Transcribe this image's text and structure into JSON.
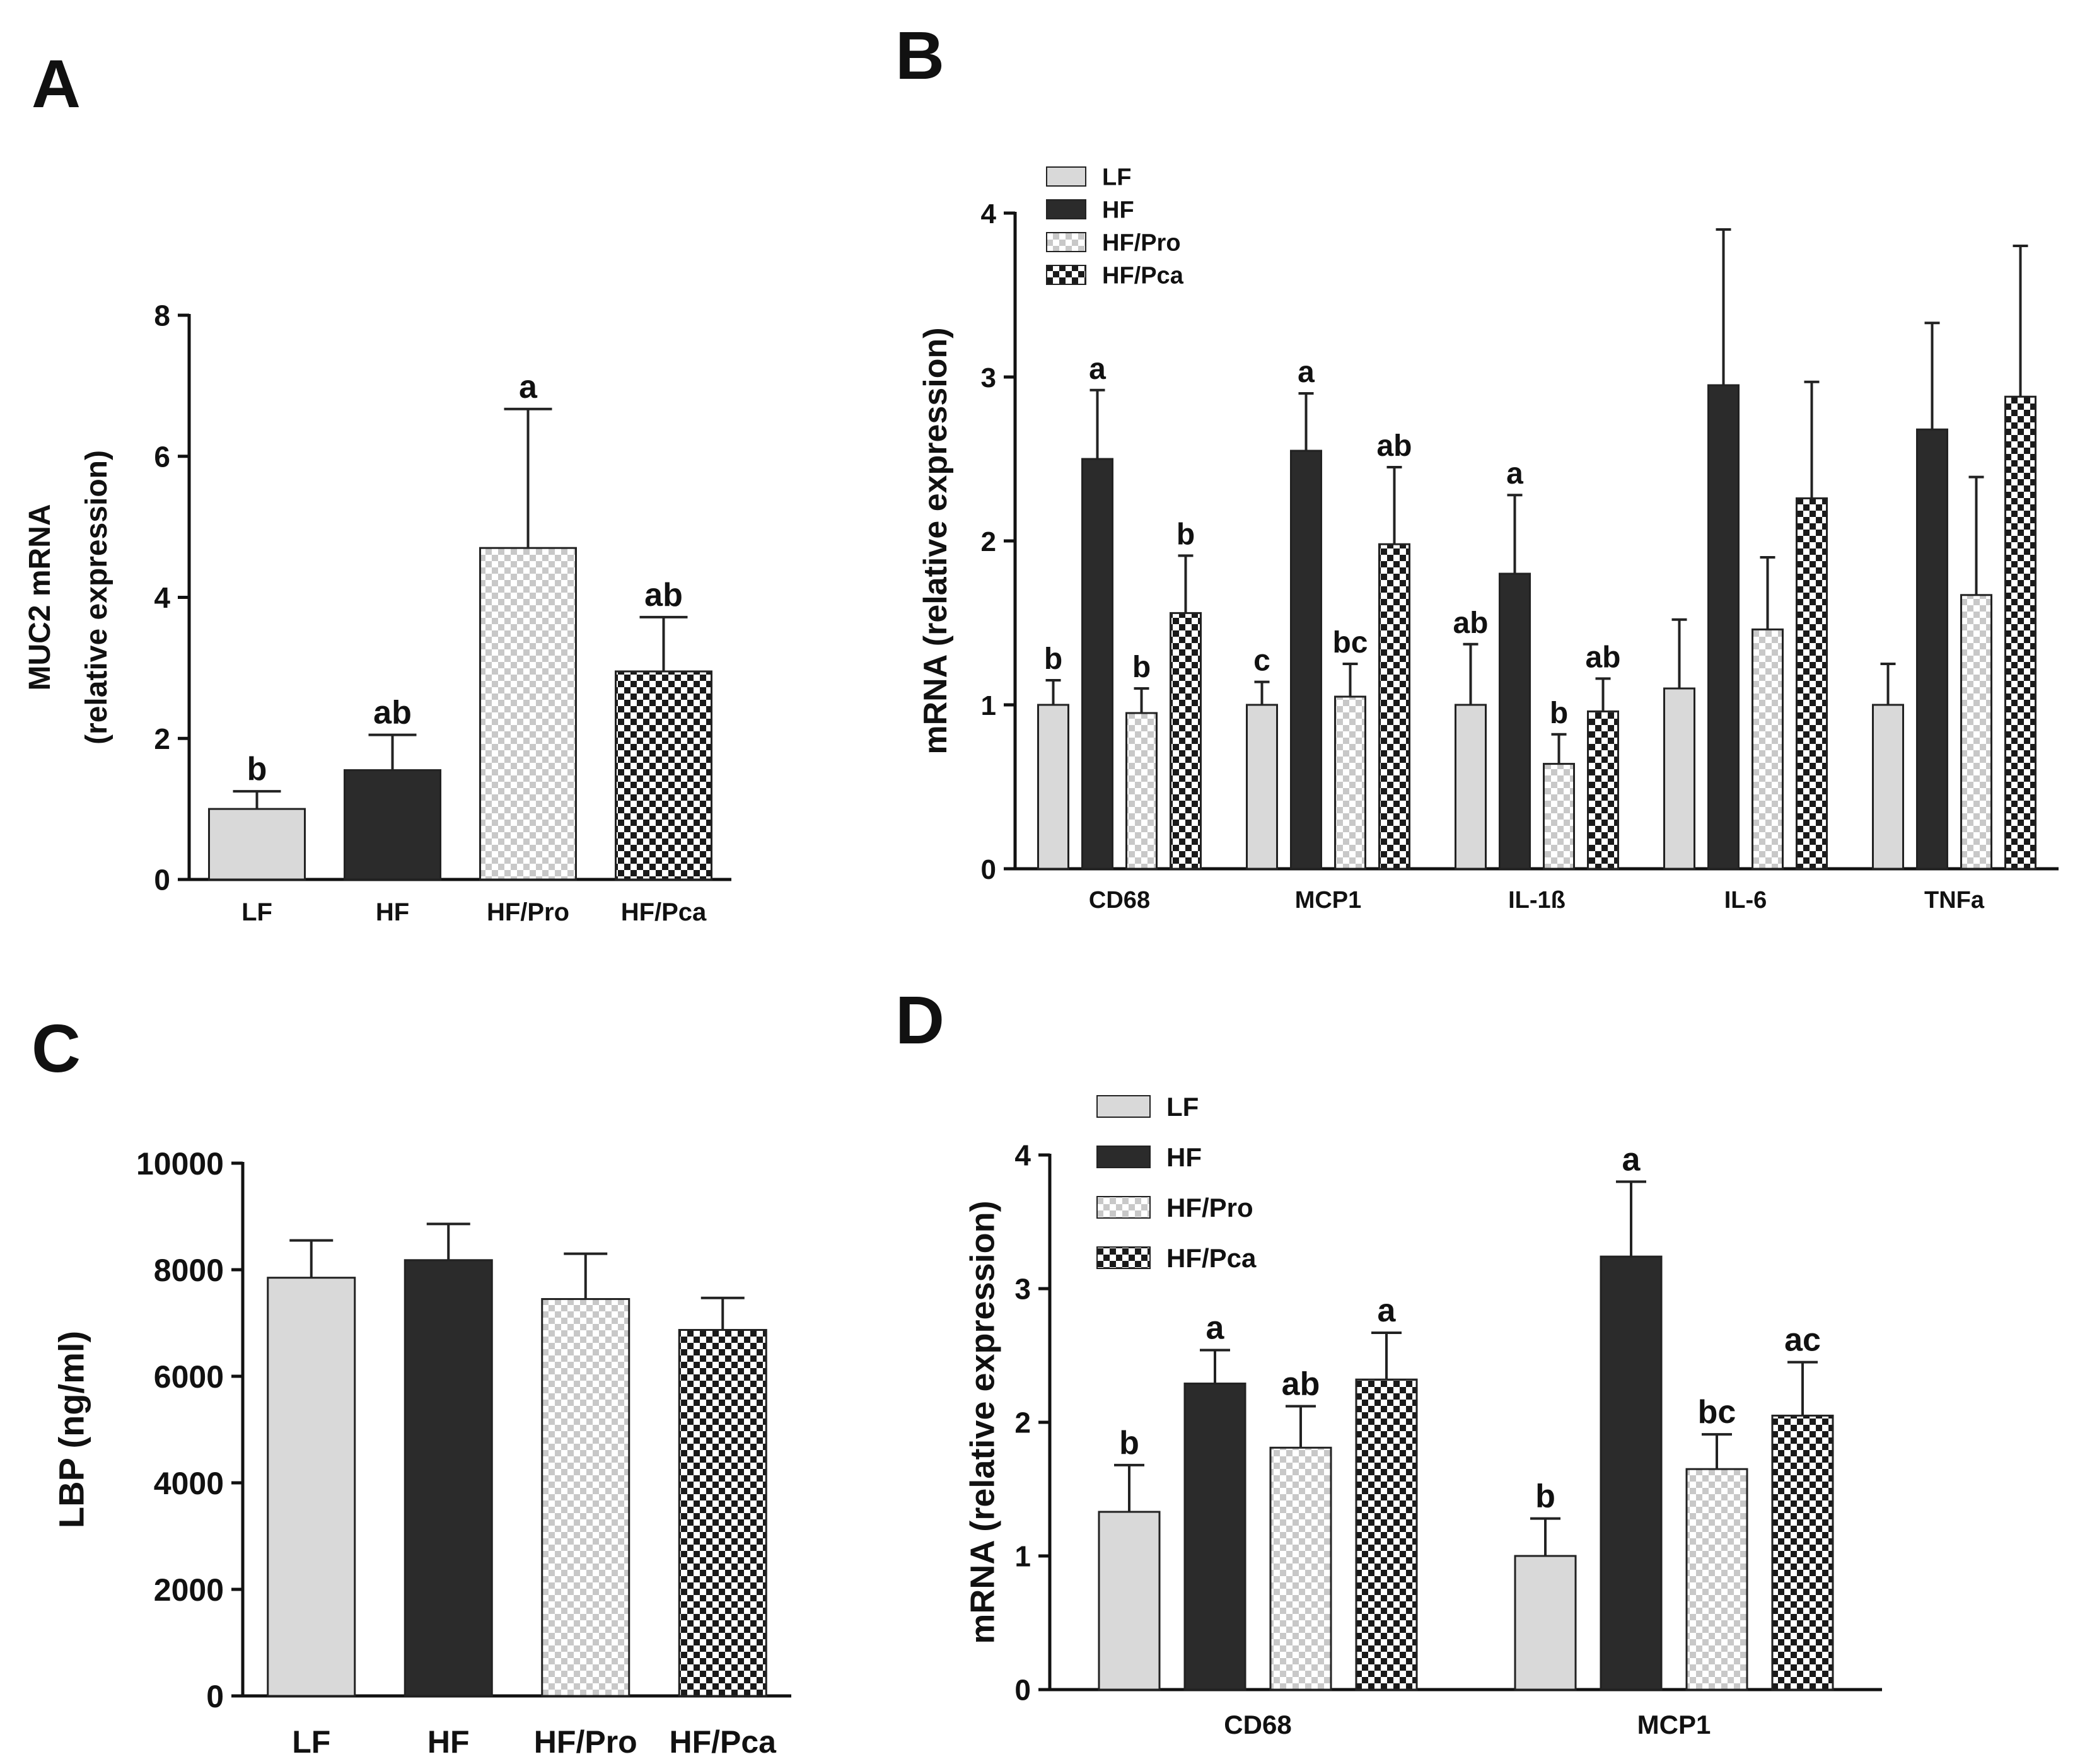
{
  "colors": {
    "light": "#d9d9d9",
    "dark": "#2b2b2b",
    "check_light_a": "#ffffff",
    "check_light_b": "#c8c8c8",
    "check_dark_a": "#ffffff",
    "check_dark_b": "#1a1a1a",
    "axis": "#111111",
    "bar_stroke": "#222222"
  },
  "groups": [
    "LF",
    "HF",
    "HF/Pro",
    "HF/Pca"
  ],
  "chart_data": [
    {
      "panel": "A",
      "type": "bar",
      "title": "",
      "xlabel": "",
      "ylabel_lines": [
        "MUC2 mRNA",
        "(relative expression)"
      ],
      "ylim": [
        0,
        8
      ],
      "yticks": [
        0,
        2,
        4,
        6,
        8
      ],
      "categories": [
        "LF",
        "HF",
        "HF/Pro",
        "HF/Pca"
      ],
      "values": [
        1.0,
        1.55,
        4.7,
        2.95
      ],
      "errors": [
        0.25,
        0.5,
        1.97,
        0.77
      ],
      "letters": [
        "b",
        "ab",
        "a",
        "ab"
      ],
      "legend": false
    },
    {
      "panel": "B",
      "type": "bar",
      "title": "",
      "xlabel": "",
      "ylabel_lines": [
        "mRNA (relative expression)"
      ],
      "ylim": [
        0,
        4
      ],
      "yticks": [
        0,
        1,
        2,
        3,
        4
      ],
      "categories": [
        "CD68",
        "MCP1",
        "IL-1ß",
        "IL-6",
        "TNFa"
      ],
      "series": [
        {
          "name": "LF",
          "values": [
            1.0,
            1.0,
            1.0,
            1.1,
            1.0
          ],
          "errors": [
            0.15,
            0.14,
            0.37,
            0.42,
            0.25
          ],
          "letters": [
            "b",
            "c",
            "ab",
            "",
            ""
          ]
        },
        {
          "name": "HF",
          "values": [
            2.5,
            2.55,
            1.8,
            2.95,
            2.68
          ],
          "errors": [
            0.42,
            0.35,
            0.48,
            0.95,
            0.65
          ],
          "letters": [
            "a",
            "a",
            "a",
            "",
            ""
          ]
        },
        {
          "name": "HF/Pro",
          "values": [
            0.95,
            1.05,
            0.64,
            1.46,
            1.67
          ],
          "errors": [
            0.15,
            0.2,
            0.18,
            0.44,
            0.72
          ],
          "letters": [
            "b",
            "bc",
            "b",
            "",
            ""
          ]
        },
        {
          "name": "HF/Pca",
          "values": [
            1.56,
            1.98,
            0.96,
            2.26,
            2.88
          ],
          "errors": [
            0.35,
            0.47,
            0.2,
            0.71,
            0.92
          ],
          "letters": [
            "b",
            "ab",
            "ab",
            "",
            ""
          ]
        }
      ],
      "legend": true,
      "legend_position": "top-left"
    },
    {
      "panel": "C",
      "type": "bar",
      "title": "",
      "xlabel": "",
      "ylabel_lines": [
        "LBP (ng/ml)"
      ],
      "ylim": [
        0,
        10000
      ],
      "yticks": [
        0,
        2000,
        4000,
        6000,
        8000,
        10000
      ],
      "categories": [
        "LF",
        "HF",
        "HF/Pro",
        "HF/Pca"
      ],
      "values": [
        7850,
        8180,
        7450,
        6870
      ],
      "errors": [
        700,
        680,
        850,
        600
      ],
      "letters": [
        "",
        "",
        "",
        ""
      ],
      "legend": false
    },
    {
      "panel": "D",
      "type": "bar",
      "title": "",
      "xlabel": "",
      "ylabel_lines": [
        "mRNA (relative expression)"
      ],
      "ylim": [
        0,
        4
      ],
      "yticks": [
        0,
        1,
        2,
        3,
        4
      ],
      "categories": [
        "CD68",
        "MCP1"
      ],
      "series": [
        {
          "name": "LF",
          "values": [
            1.33,
            1.0
          ],
          "errors": [
            0.35,
            0.28
          ],
          "letters": [
            "b",
            "b"
          ]
        },
        {
          "name": "HF",
          "values": [
            2.29,
            3.24
          ],
          "errors": [
            0.25,
            0.56
          ],
          "letters": [
            "a",
            "a"
          ]
        },
        {
          "name": "HF/Pro",
          "values": [
            1.81,
            1.65
          ],
          "errors": [
            0.31,
            0.26
          ],
          "letters": [
            "ab",
            "bc"
          ]
        },
        {
          "name": "HF/Pca",
          "values": [
            2.32,
            2.05
          ],
          "errors": [
            0.35,
            0.4
          ],
          "letters": [
            "a",
            "ac"
          ]
        }
      ],
      "legend": true,
      "legend_position": "top-left"
    }
  ]
}
